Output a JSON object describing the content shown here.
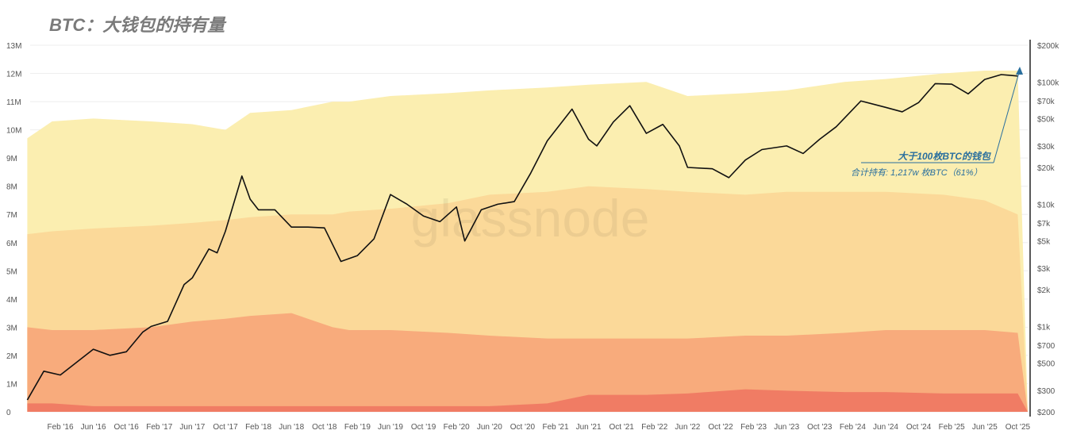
{
  "chart_data": {
    "type": "area",
    "title": "BTC：大钱包的持有量",
    "watermark": "glassnode",
    "left_axis": {
      "ticks": [
        "0",
        "1M",
        "2M",
        "3M",
        "4M",
        "5M",
        "6M",
        "7M",
        "8M",
        "9M",
        "10M",
        "11M",
        "12M",
        "13M"
      ],
      "range": [
        0,
        13000000
      ]
    },
    "right_axis": {
      "scale": "log",
      "range": [
        200,
        200000
      ],
      "ticks": [
        {
          "label": "$200k",
          "v": 200000
        },
        {
          "label": "$100k",
          "v": 100000
        },
        {
          "label": "$70k",
          "v": 70000
        },
        {
          "label": "$50k",
          "v": 50000
        },
        {
          "label": "$30k",
          "v": 30000
        },
        {
          "label": "$20k",
          "v": 20000
        },
        {
          "label": "$10k",
          "v": 10000
        },
        {
          "label": "$7k",
          "v": 7000
        },
        {
          "label": "$5k",
          "v": 5000
        },
        {
          "label": "$3k",
          "v": 3000
        },
        {
          "label": "$2k",
          "v": 2000
        },
        {
          "label": "$1k",
          "v": 1000
        },
        {
          "label": "$700",
          "v": 700
        },
        {
          "label": "$500",
          "v": 500
        },
        {
          "label": "$300",
          "v": 300
        },
        {
          "label": "$200",
          "v": 200
        }
      ]
    },
    "x_ticks": [
      "Feb '16",
      "Jun '16",
      "Oct '16",
      "Feb '17",
      "Jun '17",
      "Oct '17",
      "Feb '18",
      "Jun '18",
      "Oct '18",
      "Feb '19",
      "Jun '19",
      "Oct '19",
      "Feb '20",
      "Jun '20",
      "Oct '20",
      "Feb '21",
      "Jun '21",
      "Oct '21",
      "Feb '22",
      "Jun '22",
      "Oct '22",
      "Feb '23",
      "Jun '23",
      "Oct '23",
      "Feb '24",
      "Jun '24",
      "Oct '24",
      "Feb '25",
      "Jun '25",
      "Oct '25"
    ],
    "area_dates": [
      "2015-10",
      "2016-01",
      "2016-06",
      "2017-01",
      "2017-06",
      "2017-10",
      "2018-01",
      "2018-06",
      "2018-11",
      "2019-01",
      "2019-06",
      "2020-01",
      "2020-06",
      "2021-01",
      "2021-06",
      "2022-01",
      "2022-06",
      "2023-01",
      "2023-06",
      "2024-01",
      "2024-06",
      "2025-01",
      "2025-06",
      "2025-10"
    ],
    "stacked_series_millions": [
      {
        "color": "#fbeeb0",
        "values": [
          9.7,
          10.3,
          10.4,
          10.3,
          10.2,
          10.0,
          10.6,
          10.7,
          11.0,
          11.0,
          11.2,
          11.3,
          11.4,
          11.5,
          11.6,
          11.7,
          11.2,
          11.3,
          11.4,
          11.7,
          11.8,
          12.0,
          12.1,
          12.1
        ]
      },
      {
        "color": "#fbd999",
        "values": [
          6.3,
          6.4,
          6.5,
          6.6,
          6.7,
          6.8,
          6.9,
          7.0,
          7.0,
          7.1,
          7.2,
          7.4,
          7.7,
          7.8,
          8.0,
          7.9,
          7.8,
          7.7,
          7.8,
          7.8,
          7.8,
          7.7,
          7.5,
          7.0
        ]
      },
      {
        "color": "#f8ab7c",
        "values": [
          3.0,
          2.9,
          2.9,
          3.0,
          3.2,
          3.3,
          3.4,
          3.5,
          3.0,
          2.9,
          2.9,
          2.8,
          2.7,
          2.6,
          2.6,
          2.6,
          2.6,
          2.7,
          2.7,
          2.8,
          2.9,
          2.9,
          2.9,
          2.8
        ]
      },
      {
        "color": "#f07c64",
        "values": [
          0.3,
          0.3,
          0.2,
          0.2,
          0.2,
          0.2,
          0.2,
          0.2,
          0.2,
          0.2,
          0.2,
          0.2,
          0.2,
          0.3,
          0.6,
          0.6,
          0.65,
          0.8,
          0.75,
          0.7,
          0.7,
          0.65,
          0.65,
          0.65
        ]
      }
    ],
    "price_series": {
      "name": "BTC price",
      "color": "#111111",
      "points": [
        [
          "2015-10",
          250
        ],
        [
          "2015-12",
          430
        ],
        [
          "2016-02",
          400
        ],
        [
          "2016-06",
          650
        ],
        [
          "2016-08",
          580
        ],
        [
          "2016-10",
          620
        ],
        [
          "2016-12",
          900
        ],
        [
          "2017-01",
          1000
        ],
        [
          "2017-03",
          1100
        ],
        [
          "2017-05",
          2200
        ],
        [
          "2017-06",
          2500
        ],
        [
          "2017-08",
          4300
        ],
        [
          "2017-09",
          4000
        ],
        [
          "2017-10",
          6000
        ],
        [
          "2017-12",
          17000
        ],
        [
          "2018-01",
          11000
        ],
        [
          "2018-02",
          9000
        ],
        [
          "2018-04",
          9000
        ],
        [
          "2018-06",
          6500
        ],
        [
          "2018-08",
          6500
        ],
        [
          "2018-10",
          6400
        ],
        [
          "2018-12",
          3400
        ],
        [
          "2019-02",
          3800
        ],
        [
          "2019-04",
          5200
        ],
        [
          "2019-06",
          12000
        ],
        [
          "2019-08",
          10000
        ],
        [
          "2019-10",
          8000
        ],
        [
          "2019-12",
          7200
        ],
        [
          "2020-02",
          9500
        ],
        [
          "2020-03",
          5000
        ],
        [
          "2020-05",
          9000
        ],
        [
          "2020-07",
          10000
        ],
        [
          "2020-09",
          10500
        ],
        [
          "2020-11",
          18000
        ],
        [
          "2021-01",
          33000
        ],
        [
          "2021-04",
          60000
        ],
        [
          "2021-06",
          34000
        ],
        [
          "2021-07",
          30000
        ],
        [
          "2021-09",
          47000
        ],
        [
          "2021-11",
          64000
        ],
        [
          "2022-01",
          38000
        ],
        [
          "2022-03",
          45000
        ],
        [
          "2022-05",
          30000
        ],
        [
          "2022-06",
          20000
        ],
        [
          "2022-09",
          19500
        ],
        [
          "2022-11",
          16500
        ],
        [
          "2023-01",
          23000
        ],
        [
          "2023-03",
          28000
        ],
        [
          "2023-06",
          30000
        ],
        [
          "2023-08",
          26000
        ],
        [
          "2023-10",
          34000
        ],
        [
          "2023-12",
          43000
        ],
        [
          "2024-03",
          70000
        ],
        [
          "2024-06",
          62000
        ],
        [
          "2024-08",
          57000
        ],
        [
          "2024-10",
          68000
        ],
        [
          "2024-12",
          97000
        ],
        [
          "2025-02",
          96000
        ],
        [
          "2025-04",
          80000
        ],
        [
          "2025-06",
          105000
        ],
        [
          "2025-08",
          115000
        ],
        [
          "2025-10",
          112000
        ]
      ]
    },
    "annotation": {
      "title": "大于100枚BTC的钱包",
      "subtitle": "合计持有: 1,217w 枚BTC（61%）",
      "color": "#2a6f9e"
    }
  }
}
